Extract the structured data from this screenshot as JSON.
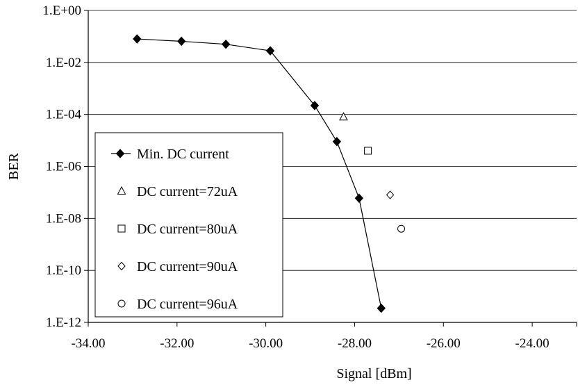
{
  "chart_data": {
    "type": "scatter",
    "xlabel": "Signal [dBm]",
    "ylabel": "BER",
    "xlim": [
      -34,
      -23
    ],
    "ylim": [
      1e-12,
      1
    ],
    "y_scale": "log",
    "x_ticks": [
      -34,
      -32,
      -30,
      -28,
      -26,
      -24
    ],
    "x_tick_labels": [
      "-34.00",
      "-32.00",
      "-30.00",
      "-28.00",
      "-26.00",
      "-24.00"
    ],
    "y_ticks": [
      1,
      0.01,
      0.0001,
      1e-06,
      1e-08,
      1e-10,
      1e-12
    ],
    "y_tick_labels": [
      "1.E+00",
      "1.E-02",
      "1.E-04",
      "1.E-06",
      "1.E-08",
      "1.E-10",
      "1.E-12"
    ],
    "grid": "horizontal major gridlines",
    "legend_position": "left",
    "series": [
      {
        "name": "Min. DC current",
        "marker": "filled-diamond",
        "line": true,
        "x": [
          -32.9,
          -31.9,
          -30.9,
          -29.9,
          -28.9,
          -28.4,
          -27.9,
          -27.4
        ],
        "y": [
          0.08,
          0.065,
          0.05,
          0.028,
          0.00022,
          9e-06,
          6e-08,
          3.5e-12
        ]
      },
      {
        "name": "DC current=72uA",
        "marker": "open-triangle",
        "line": false,
        "x": [
          -28.25
        ],
        "y": [
          8e-05
        ]
      },
      {
        "name": "DC current=80uA",
        "marker": "open-square",
        "line": false,
        "x": [
          -27.7
        ],
        "y": [
          4e-06
        ]
      },
      {
        "name": "DC current=90uA",
        "marker": "open-diamond",
        "line": false,
        "x": [
          -27.2
        ],
        "y": [
          8e-08
        ]
      },
      {
        "name": "DC current=96uA",
        "marker": "open-circle",
        "line": false,
        "x": [
          -26.95
        ],
        "y": [
          4e-09
        ]
      }
    ]
  }
}
